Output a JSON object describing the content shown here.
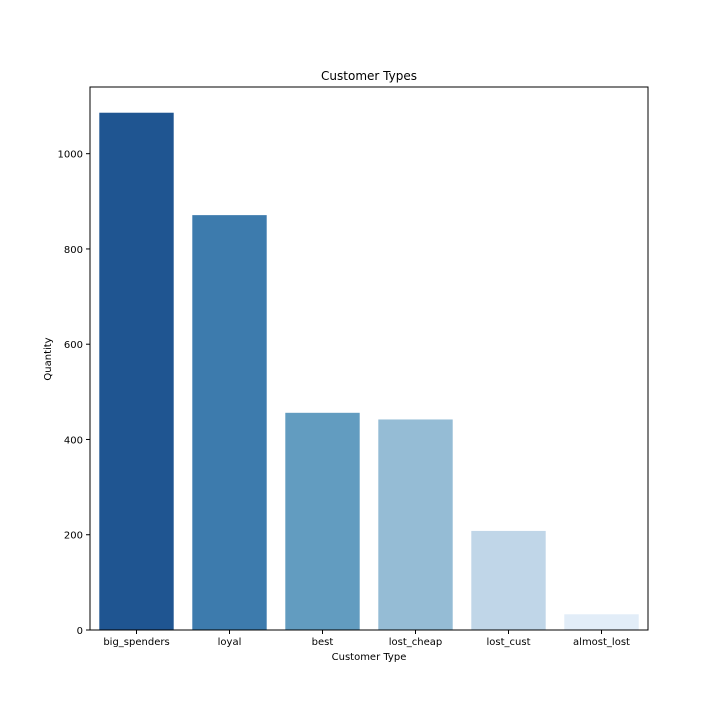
{
  "chart_data": {
    "type": "bar",
    "title": "Customer Types",
    "xlabel": "Customer Type",
    "ylabel": "Quantity",
    "categories": [
      "big_spenders",
      "loyal",
      "best",
      "lost_cheap",
      "lost_cust",
      "almost_lost"
    ],
    "values": [
      1086,
      871,
      456,
      442,
      208,
      33
    ],
    "colors": [
      "#1f5591",
      "#3d7bad",
      "#629cc0",
      "#95bcd5",
      "#c0d6e8",
      "#e2edf8"
    ],
    "ylim": [
      0,
      1140
    ],
    "yticks": [
      0,
      200,
      400,
      600,
      800,
      1000
    ],
    "grid": false
  }
}
